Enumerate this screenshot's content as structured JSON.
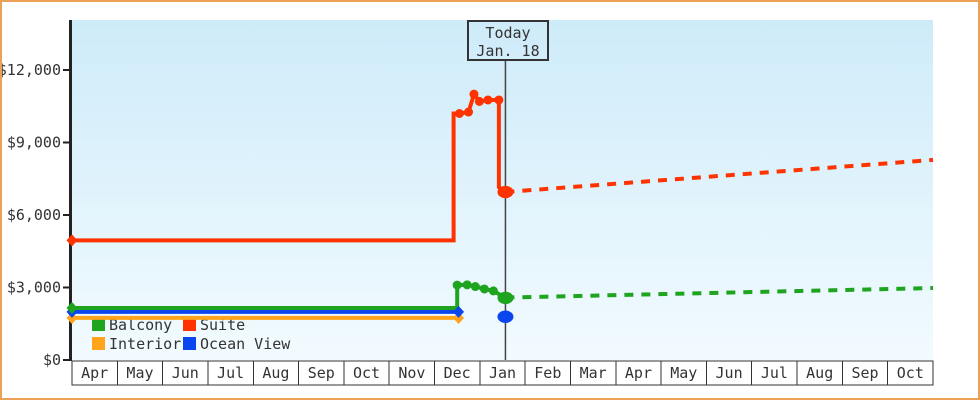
{
  "chart_data": {
    "type": "line",
    "title": "",
    "today": {
      "label_line1": "Today",
      "label_line2": "Jan. 18",
      "x": 9.565
    },
    "x_axis": {
      "unit": "month",
      "labels": [
        "Apr",
        "May",
        "Jun",
        "Jul",
        "Aug",
        "Sep",
        "Oct",
        "Nov",
        "Dec",
        "Jan",
        "Feb",
        "Mar",
        "Apr",
        "May",
        "Jun",
        "Jul",
        "Aug",
        "Sep",
        "Oct"
      ]
    },
    "y_axis": {
      "ticks": [
        {
          "label": "$0",
          "value": 0
        },
        {
          "label": "$3,000",
          "value": 3000
        },
        {
          "label": "$6,000",
          "value": 6000
        },
        {
          "label": "$9,000",
          "value": 9000
        },
        {
          "label": "$12,000",
          "value": 12000
        }
      ],
      "ylim": [
        0,
        14070
      ],
      "grid": false
    },
    "legend": {
      "position": "bottom-left-inside",
      "rows": [
        [
          "Balcony",
          "Suite"
        ],
        [
          "Interior",
          "Ocean View"
        ]
      ]
    },
    "series": [
      {
        "name": "Interior",
        "color": "#FFA41C",
        "solid": [
          [
            0,
            1740
          ],
          [
            8.53,
            1740
          ]
        ],
        "diamonds": [
          [
            0,
            1740
          ],
          [
            8.53,
            1740
          ]
        ],
        "dots": [],
        "big_dots": [],
        "dashed": []
      },
      {
        "name": "Ocean View",
        "color": "#0A46F0",
        "solid": [
          [
            0,
            1990
          ],
          [
            8.53,
            1990
          ]
        ],
        "diamonds": [
          [
            0,
            1990
          ],
          [
            8.53,
            1990
          ]
        ],
        "dots": [],
        "big_dots": [
          [
            9.565,
            1790
          ]
        ],
        "dashed": []
      },
      {
        "name": "Balcony",
        "color": "#1EA41E",
        "solid": [
          [
            0,
            2150
          ],
          [
            8.5,
            2150
          ],
          [
            8.5,
            3100
          ],
          [
            8.72,
            3110
          ],
          [
            8.9,
            3040
          ],
          [
            9.1,
            2940
          ],
          [
            9.3,
            2860
          ],
          [
            9.565,
            2570
          ]
        ],
        "dots": [
          [
            8.5,
            3100
          ],
          [
            8.72,
            3110
          ],
          [
            8.9,
            3040
          ],
          [
            9.1,
            2940
          ],
          [
            9.3,
            2860
          ]
        ],
        "diamonds": [
          [
            0,
            2150
          ]
        ],
        "big_dots": [
          [
            9.565,
            2570
          ]
        ],
        "dashed": [
          [
            9.565,
            2580
          ],
          [
            19,
            2980
          ]
        ]
      },
      {
        "name": "Suite",
        "color": "#FF3300",
        "solid": [
          [
            0,
            4950
          ],
          [
            8.42,
            4950
          ],
          [
            8.42,
            10200
          ],
          [
            8.55,
            10200
          ],
          [
            8.75,
            10260
          ],
          [
            8.87,
            11000
          ],
          [
            8.99,
            10700
          ],
          [
            9.18,
            10760
          ],
          [
            9.42,
            10760
          ],
          [
            9.42,
            7150
          ],
          [
            9.565,
            6950
          ]
        ],
        "dots": [
          [
            8.55,
            10200
          ],
          [
            8.75,
            10260
          ],
          [
            8.87,
            11000
          ],
          [
            8.99,
            10700
          ],
          [
            9.18,
            10760
          ],
          [
            9.42,
            10760
          ]
        ],
        "diamonds": [
          [
            0,
            4950
          ]
        ],
        "big_dots": [
          [
            9.565,
            6950
          ]
        ],
        "dashed": [
          [
            9.565,
            6950
          ],
          [
            19,
            8280
          ]
        ]
      }
    ],
    "colors": {
      "plot_bg_top": "#CEEBF9",
      "plot_bg_bottom": "#F2FBFF",
      "frame_border": "#EBA258",
      "axis": "#222222",
      "text": "#333333",
      "month_cell_bg": "#FFFFFF",
      "today_line": "#444444"
    }
  }
}
